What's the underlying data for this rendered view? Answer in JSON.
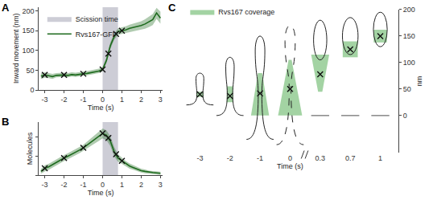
{
  "chart_data": [
    {
      "panel": "A",
      "type": "line",
      "x": [
        -3.2,
        -3.0,
        -2.8,
        -2.6,
        -2.4,
        -2.2,
        -2.0,
        -1.8,
        -1.6,
        -1.4,
        -1.2,
        -1.0,
        -0.8,
        -0.6,
        -0.4,
        -0.2,
        0,
        0.2,
        0.4,
        0.6,
        0.8,
        1.0,
        1.2,
        1.4,
        1.6,
        1.8,
        2.0,
        2.2,
        2.4,
        2.6,
        2.8,
        3.0
      ],
      "xlabel": "Time (s)",
      "ylabel": "Inward movement (nm)",
      "xlim": [
        -3.3,
        3.1
      ],
      "xticks": [
        -3,
        -2,
        -1,
        0,
        1,
        2,
        3
      ],
      "ylim": [
        0,
        210
      ],
      "yticks": [
        0,
        50,
        100,
        150,
        200
      ],
      "legend": "top-left",
      "series": [
        {
          "name": "Rvs167-GFP",
          "color": "#1e6b1e",
          "values": [
            35,
            38,
            36,
            34,
            37,
            38,
            38,
            37,
            39,
            38,
            40,
            41,
            42,
            44,
            46,
            48,
            52,
            75,
            112,
            135,
            148,
            150,
            152,
            156,
            158,
            160,
            163,
            167,
            172,
            178,
            195,
            182
          ],
          "lower": [
            28,
            31,
            30,
            28,
            32,
            33,
            33,
            32,
            34,
            33,
            35,
            36,
            37,
            39,
            41,
            43,
            47,
            68,
            104,
            127,
            140,
            142,
            144,
            147,
            148,
            150,
            152,
            155,
            159,
            164,
            180,
            168
          ],
          "upper": [
            42,
            45,
            43,
            41,
            43,
            44,
            44,
            43,
            45,
            44,
            46,
            47,
            48,
            50,
            52,
            54,
            58,
            82,
            120,
            143,
            156,
            158,
            161,
            165,
            168,
            170,
            174,
            179,
            185,
            192,
            208,
            198
          ],
          "marker": "x",
          "marker_x": [
            -3,
            -2,
            -1,
            0,
            0.3,
            0.7,
            1
          ],
          "marker_values": [
            38,
            38,
            41,
            52,
            92,
            142,
            150
          ]
        }
      ],
      "shaded": {
        "name": "Scission time",
        "color": "#bcbcc8",
        "x": [
          0,
          0.8
        ]
      }
    },
    {
      "panel": "B",
      "type": "line",
      "x": [
        -3.2,
        -3.0,
        -2.8,
        -2.6,
        -2.4,
        -2.2,
        -2.0,
        -1.8,
        -1.6,
        -1.4,
        -1.2,
        -1.0,
        -0.8,
        -0.6,
        -0.4,
        -0.2,
        0,
        0.2,
        0.4,
        0.6,
        0.8,
        1.0,
        1.2,
        1.4,
        1.6,
        1.8,
        2.0,
        2.2,
        2.4,
        2.6,
        2.8,
        3.0
      ],
      "xlabel": "Time (s)",
      "ylabel": "Molecules",
      "xlim": [
        -3.3,
        3.1
      ],
      "xticks": [
        -3,
        -2,
        -1,
        0,
        1,
        2,
        3
      ],
      "ylim": [
        0,
        140
      ],
      "yticks": [
        0,
        50,
        100
      ],
      "tick_labels": "x",
      "series": [
        {
          "color": "#1e6b1e",
          "values": [
            10,
            18,
            22,
            28,
            33,
            40,
            45,
            50,
            55,
            60,
            66,
            72,
            80,
            88,
            95,
            102,
            110,
            105,
            90,
            62,
            45,
            38,
            30,
            24,
            20,
            16,
            12,
            10,
            8,
            7,
            6,
            5
          ],
          "lower": [
            4,
            10,
            14,
            20,
            25,
            32,
            37,
            42,
            47,
            52,
            58,
            64,
            71,
            78,
            84,
            90,
            97,
            92,
            77,
            50,
            35,
            30,
            23,
            17,
            14,
            10,
            7,
            5,
            4,
            3,
            2,
            1
          ],
          "upper": [
            16,
            26,
            30,
            36,
            41,
            48,
            53,
            58,
            63,
            68,
            74,
            80,
            89,
            98,
            106,
            114,
            123,
            118,
            103,
            74,
            55,
            46,
            37,
            31,
            26,
            22,
            17,
            15,
            12,
            11,
            10,
            9
          ],
          "marker": "x",
          "marker_x": [
            -3,
            -2,
            -1,
            0,
            0.3,
            0.7,
            1
          ],
          "marker_values": [
            18,
            45,
            72,
            110,
            98,
            55,
            38
          ]
        }
      ],
      "shaded": {
        "color": "#bcbcc8",
        "x": [
          0,
          0.8
        ]
      }
    },
    {
      "panel": "C",
      "type": "scatter",
      "categories": [
        "-3",
        "-2",
        "-1",
        "0",
        "0.3",
        "0.7",
        "1"
      ],
      "xlabel": "Time (s)",
      "ylabel": "nm",
      "ylim": [
        -70,
        200
      ],
      "yticks": [
        0,
        50,
        100,
        150,
        200
      ],
      "legend": "top-left",
      "series": [
        {
          "name": "Rvs167 coverage",
          "color": "#8cc88c",
          "coverage": [
            [
              35,
              45
            ],
            [
              25,
              55
            ],
            [
              0,
              80
            ],
            [
              0,
              105
            ],
            [
              45,
              115
            ],
            [
              110,
              140
            ],
            [
              138,
              162
            ]
          ]
        },
        {
          "color": "#1e6b1e",
          "marker": "x",
          "values": [
            40,
            37,
            42,
            50,
            78,
            125,
            150
          ]
        }
      ]
    }
  ]
}
